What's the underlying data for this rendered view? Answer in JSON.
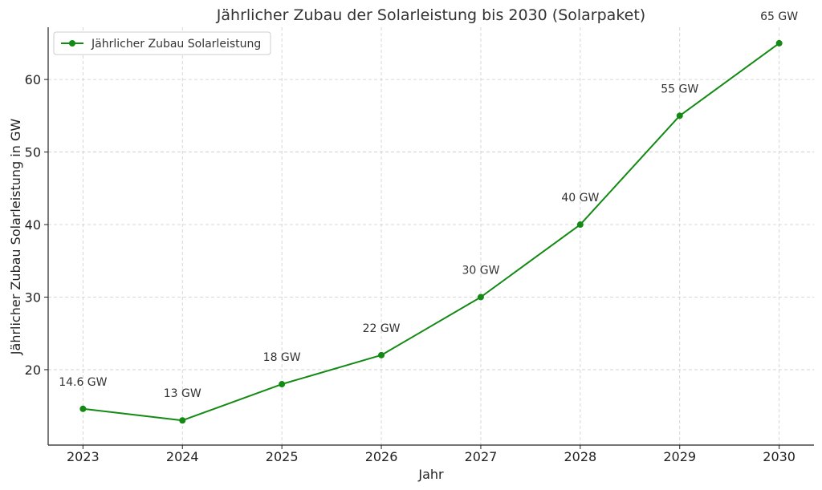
{
  "chart_data": {
    "type": "line",
    "title": "Jährlicher Zubau der Solarleistung bis 2030 (Solarpaket)",
    "xlabel": "Jahr",
    "ylabel": "Jährlicher Zubau Solarleistung in GW",
    "x": [
      2023,
      2024,
      2025,
      2026,
      2027,
      2028,
      2029,
      2030
    ],
    "series": [
      {
        "name": "Jährlicher Zubau Solarleistung",
        "values": [
          14.6,
          13,
          18,
          22,
          30,
          40,
          55,
          65
        ],
        "color": "#138a13",
        "marker": "circle"
      }
    ],
    "data_labels": [
      "14.6 GW",
      "13 GW",
      "18 GW",
      "22 GW",
      "30 GW",
      "40 GW",
      "55 GW",
      "65 GW"
    ],
    "xlim": [
      2022.65,
      2030.35
    ],
    "ylim": [
      9.6,
      67.2
    ],
    "yticks": [
      20,
      30,
      40,
      50,
      60
    ],
    "grid": true,
    "legend_position": "top-left"
  }
}
